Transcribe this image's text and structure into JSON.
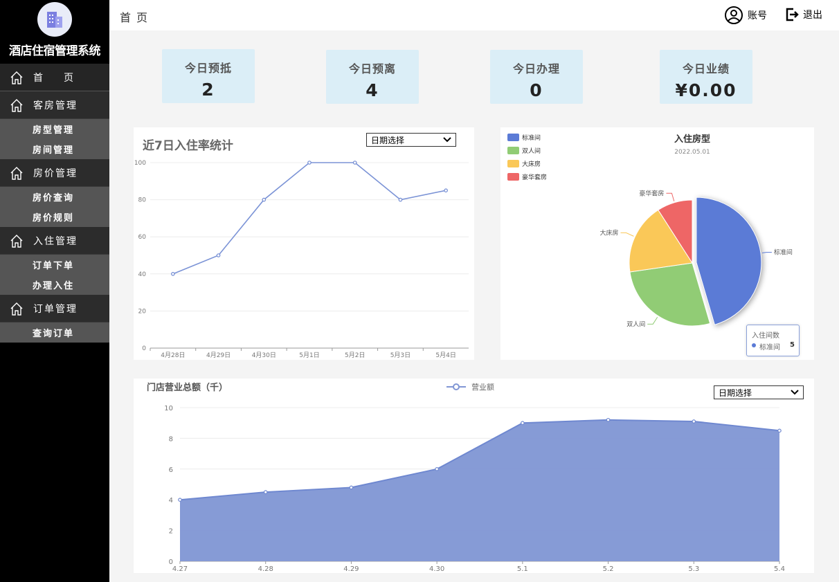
{
  "app": {
    "title": "酒店住宿管理系统",
    "logo_icon": "hotel-building-icon"
  },
  "header": {
    "breadcrumb": "首页",
    "account_label": "账号",
    "logout_label": "退出"
  },
  "sidebar": {
    "menus": [
      {
        "label": "首页",
        "icon": "home-icon",
        "children": []
      },
      {
        "label": "客房管理",
        "icon": "home-icon",
        "children": [
          "房型管理",
          "房间管理"
        ]
      },
      {
        "label": "房价管理",
        "icon": "home-icon",
        "children": [
          "房价查询",
          "房价规则"
        ]
      },
      {
        "label": "入住管理",
        "icon": "home-icon",
        "children": [
          "订单下单",
          "办理入住"
        ]
      },
      {
        "label": "订单管理",
        "icon": "home-icon",
        "children": [
          "查询订单"
        ]
      }
    ]
  },
  "stats": [
    {
      "title": "今日预抵",
      "value": "2"
    },
    {
      "title": "今日预离",
      "value": "4"
    },
    {
      "title": "今日办理",
      "value": "0"
    },
    {
      "title": "今日业绩",
      "value": "¥0.00"
    }
  ],
  "occupancy_panel": {
    "title": "近7日入住率统计",
    "date_select": "日期选择"
  },
  "room_type_panel": {
    "title": "入住房型",
    "subtitle": "2022.05.01",
    "tooltip": {
      "title": "入住间数",
      "name": "标准间",
      "value": "5"
    }
  },
  "revenue_panel": {
    "title": "门店营业总额（千）",
    "legend": "营业额",
    "date_select": "日期选择"
  },
  "colors": {
    "blue": "#5b7bd6",
    "green": "#91cc75",
    "yellow": "#fac858",
    "red": "#ee6666",
    "area": "#8096d4",
    "card": "#dbeef7"
  },
  "chart_data": [
    {
      "type": "line",
      "categories": [
        "4月28日",
        "4月29日",
        "4月30日",
        "5月1日",
        "5月2日",
        "5月3日",
        "5月4日"
      ],
      "values": [
        40,
        50,
        80,
        100,
        100,
        80,
        85
      ],
      "title": "近7日入住率统计",
      "ylim": [
        0,
        100
      ],
      "yticks": [
        0,
        20,
        40,
        60,
        80,
        100
      ],
      "grid": true
    },
    {
      "type": "pie",
      "title": "入住房型",
      "subtitle": "2022.05.01",
      "legend_position": "top-left",
      "slices": [
        {
          "name": "标准间",
          "value": 5,
          "color": "#5b7bd6"
        },
        {
          "name": "双人间",
          "value": 3,
          "color": "#91cc75"
        },
        {
          "name": "大床房",
          "value": 2,
          "color": "#fac858"
        },
        {
          "name": "豪华套房",
          "value": 1,
          "color": "#ee6666"
        }
      ]
    },
    {
      "type": "area",
      "title": "门店营业总额（千）",
      "categories": [
        "4.27",
        "4.28",
        "4.29",
        "4.30",
        "5.1",
        "5.2",
        "5.3",
        "5.4"
      ],
      "series": [
        {
          "name": "营业额",
          "values": [
            4,
            4.5,
            4.8,
            6,
            9,
            9.2,
            9.1,
            8.5
          ]
        }
      ],
      "ylim": [
        0,
        10
      ],
      "yticks": [
        0,
        2,
        4,
        6,
        8,
        10
      ],
      "grid": true
    }
  ]
}
